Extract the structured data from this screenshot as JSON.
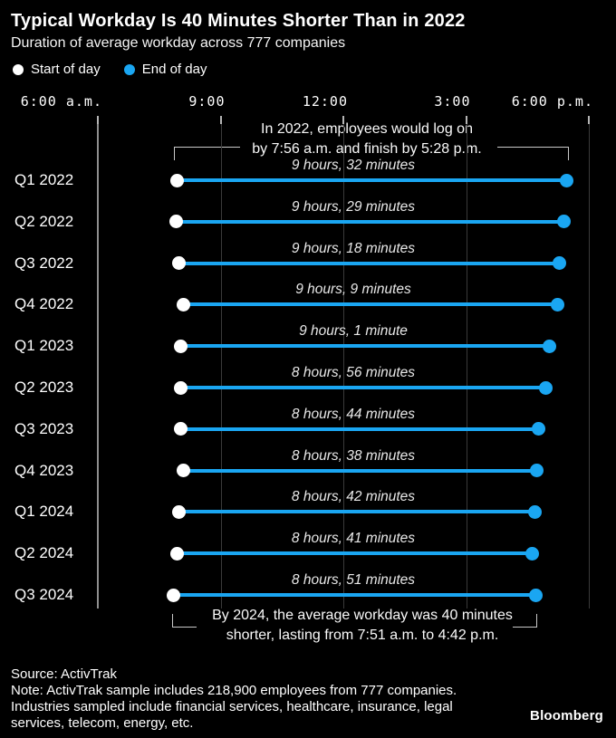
{
  "header": {
    "title": "Typical Workday Is 40 Minutes Shorter Than in 2022",
    "subtitle": "Duration of average workday across 777 companies"
  },
  "legend": [
    {
      "label": "Start of day",
      "color": "#ffffff"
    },
    {
      "label": "End of day",
      "color": "#1aa6f2"
    }
  ],
  "chart_data": {
    "type": "dumbbell-range",
    "title": "Typical Workday Is 40 Minutes Shorter Than in 2022",
    "subtitle": "Duration of average workday across 777 companies",
    "x_axis": {
      "label_type": "time of day",
      "range_minutes": [
        360,
        1080
      ],
      "grid": true,
      "ticks": [
        {
          "label": "6:00 a.m.",
          "time": "6:00"
        },
        {
          "label": "9:00",
          "time": "9:00"
        },
        {
          "label": "12:00",
          "time": "12:00"
        },
        {
          "label": "3:00",
          "time": "15:00"
        },
        {
          "label": "6:00 p.m.",
          "time": "18:00"
        }
      ]
    },
    "series_meta": {
      "start": "Start of day",
      "end": "End of day"
    },
    "rows": [
      {
        "label": "Q1 2022",
        "start": "7:56",
        "end": "17:28",
        "duration_label": "9 hours, 32 minutes"
      },
      {
        "label": "Q2 2022",
        "start": "7:55",
        "end": "17:24",
        "duration_label": "9 hours, 29 minutes"
      },
      {
        "label": "Q3 2022",
        "start": "7:59",
        "end": "17:17",
        "duration_label": "9 hours, 18 minutes"
      },
      {
        "label": "Q4 2022",
        "start": "8:05",
        "end": "17:14",
        "duration_label": "9 hours, 9 minutes"
      },
      {
        "label": "Q1 2023",
        "start": "8:01",
        "end": "17:02",
        "duration_label": "9 hours, 1 minute"
      },
      {
        "label": "Q2 2023",
        "start": "8:01",
        "end": "16:57",
        "duration_label": "8 hours, 56 minutes"
      },
      {
        "label": "Q3 2023",
        "start": "8:02",
        "end": "16:46",
        "duration_label": "8 hours, 44 minutes"
      },
      {
        "label": "Q4 2023",
        "start": "8:06",
        "end": "16:44",
        "duration_label": "8 hours, 38 minutes"
      },
      {
        "label": "Q1 2024",
        "start": "7:59",
        "end": "16:41",
        "duration_label": "8 hours, 42 minutes"
      },
      {
        "label": "Q2 2024",
        "start": "7:56",
        "end": "16:37",
        "duration_label": "8 hours, 41 minutes"
      },
      {
        "label": "Q3 2024",
        "start": "7:51",
        "end": "16:42",
        "duration_label": "8 hours, 51 minutes"
      }
    ],
    "annotations": [
      {
        "position": "top",
        "lines": [
          "In 2022, employees would log on",
          "by 7:56 a.m. and finish by 5:28 p.m."
        ]
      },
      {
        "position": "bottom",
        "lines": [
          "By 2024, the average workday was 40 minutes",
          "shorter, lasting from 7:51 a.m. to 4:42 p.m."
        ]
      }
    ],
    "colors": {
      "start_dot": "#ffffff",
      "end_dot": "#1aa6f2",
      "bar": "#1aa6f2",
      "background": "#000000"
    }
  },
  "footer": {
    "source": "Source: ActivTrak",
    "note_lines": [
      "Note: ActivTrak sample includes 218,900 employees from 777 companies.",
      "Industries sampled include financial services, healthcare, insurance, legal",
      "services, telecom, energy, etc."
    ],
    "logo": "Bloomberg"
  }
}
